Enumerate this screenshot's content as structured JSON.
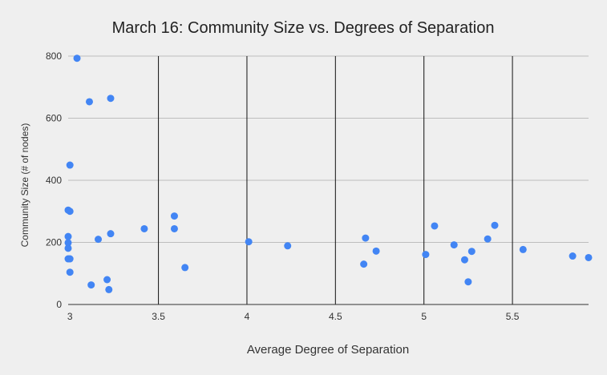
{
  "chart_data": {
    "type": "scatter",
    "title": "March 16: Community Size vs. Degrees of Separation",
    "xlabel": "Average Degree of Separation",
    "ylabel": "Community Size (# of nodes)",
    "xlim": [
      2.99,
      5.93
    ],
    "ylim": [
      0,
      800
    ],
    "x_ticks": [
      "3",
      "3.5",
      "4",
      "4.5",
      "5",
      "5.5"
    ],
    "y_ticks": [
      "0",
      "200",
      "400",
      "600",
      "800"
    ],
    "grid": {
      "horizontal": true,
      "vertical": true
    },
    "colors": {
      "point": "#4285f4",
      "hgrid": "#bdbdbd",
      "vgrid": "#111111",
      "background": "#efefef"
    },
    "points": [
      {
        "x": 3.04,
        "y": 793
      },
      {
        "x": 3.11,
        "y": 653
      },
      {
        "x": 3.23,
        "y": 664
      },
      {
        "x": 3.0,
        "y": 449
      },
      {
        "x": 2.99,
        "y": 304
      },
      {
        "x": 3.0,
        "y": 300
      },
      {
        "x": 2.99,
        "y": 219
      },
      {
        "x": 2.99,
        "y": 199
      },
      {
        "x": 2.99,
        "y": 181
      },
      {
        "x": 2.99,
        "y": 147
      },
      {
        "x": 3.0,
        "y": 147
      },
      {
        "x": 3.0,
        "y": 104
      },
      {
        "x": 3.16,
        "y": 210
      },
      {
        "x": 3.23,
        "y": 228
      },
      {
        "x": 3.12,
        "y": 63
      },
      {
        "x": 3.21,
        "y": 80
      },
      {
        "x": 3.22,
        "y": 48
      },
      {
        "x": 3.42,
        "y": 244
      },
      {
        "x": 3.59,
        "y": 285
      },
      {
        "x": 3.59,
        "y": 244
      },
      {
        "x": 3.65,
        "y": 119
      },
      {
        "x": 4.01,
        "y": 202
      },
      {
        "x": 4.23,
        "y": 189
      },
      {
        "x": 4.67,
        "y": 214
      },
      {
        "x": 4.66,
        "y": 130
      },
      {
        "x": 4.73,
        "y": 172
      },
      {
        "x": 5.01,
        "y": 161
      },
      {
        "x": 5.06,
        "y": 253
      },
      {
        "x": 5.17,
        "y": 192
      },
      {
        "x": 5.23,
        "y": 144
      },
      {
        "x": 5.25,
        "y": 73
      },
      {
        "x": 5.27,
        "y": 171
      },
      {
        "x": 5.36,
        "y": 211
      },
      {
        "x": 5.4,
        "y": 255
      },
      {
        "x": 5.56,
        "y": 177
      },
      {
        "x": 5.84,
        "y": 156
      },
      {
        "x": 5.93,
        "y": 151
      }
    ]
  }
}
